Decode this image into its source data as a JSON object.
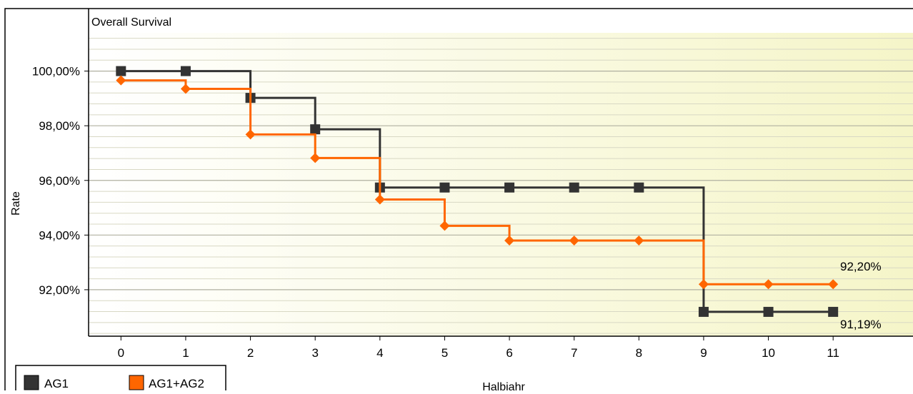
{
  "chart_data": {
    "type": "line",
    "step": true,
    "title": "Overall Survival",
    "xlabel": "Halbjahr",
    "ylabel": "Rate",
    "x_ticks": [
      "0",
      "1",
      "2",
      "3",
      "4",
      "5",
      "6",
      "7",
      "8",
      "9",
      "10",
      "11"
    ],
    "y_ticks": [
      "92,00%",
      "94,00%",
      "96,00%",
      "98,00%",
      "100,00%"
    ],
    "y_tick_values": [
      92,
      94,
      96,
      98,
      100
    ],
    "xlim": [
      -0.5,
      12.3
    ],
    "ylim": [
      90.3,
      101.4
    ],
    "grid": true,
    "legend_position": "bottom-left",
    "series": [
      {
        "name": "AG1",
        "color": "#333333",
        "marker": "square",
        "x": [
          0,
          1,
          2,
          3,
          4,
          5,
          6,
          7,
          8,
          9,
          10,
          11
        ],
        "values": [
          100.0,
          100.0,
          99.02,
          97.87,
          95.74,
          95.74,
          95.74,
          95.74,
          95.74,
          91.19,
          91.19,
          91.19
        ]
      },
      {
        "name": "AG1+AG2",
        "color": "#ff6600",
        "marker": "diamond",
        "x": [
          0,
          1,
          2,
          3,
          4,
          5,
          6,
          7,
          8,
          9,
          10,
          11
        ],
        "values": [
          99.66,
          99.35,
          97.68,
          96.82,
          95.3,
          94.34,
          93.8,
          93.8,
          93.8,
          92.2,
          92.2,
          92.2
        ]
      }
    ],
    "end_labels": [
      "92,20%",
      "91,19%"
    ],
    "colors": {
      "plot_bg_from": "#ffffff",
      "plot_bg_to": "#f5f5c8",
      "major_grid": "#b0b0a0",
      "minor_grid": "#d8d8c4",
      "axis": "#000000"
    }
  }
}
